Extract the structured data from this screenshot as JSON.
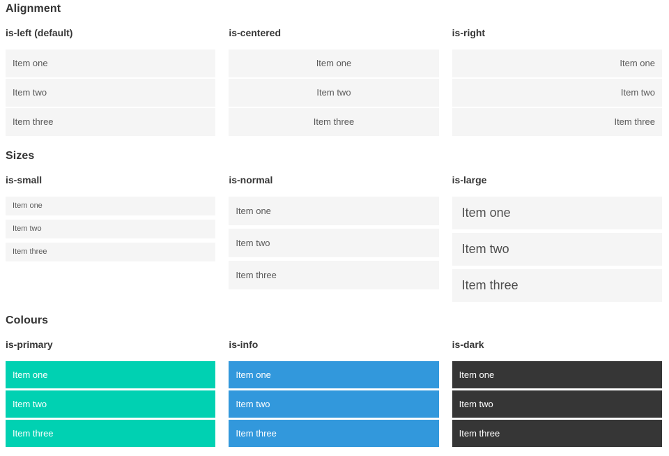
{
  "colors": {
    "primary": "#00d1b2",
    "info": "#3298dc",
    "dark": "#363636",
    "item_bg": "#f5f5f5",
    "item_text": "#595959",
    "heading_text": "#333333"
  },
  "sections": [
    {
      "title": "Alignment",
      "columns": [
        {
          "heading": "is-left (default)",
          "items": [
            "Item one",
            "Item two",
            "Item three"
          ]
        },
        {
          "heading": "is-centered",
          "items": [
            "Item one",
            "Item two",
            "Item three"
          ]
        },
        {
          "heading": "is-right",
          "items": [
            "Item one",
            "Item two",
            "Item three"
          ]
        }
      ]
    },
    {
      "title": "Sizes",
      "columns": [
        {
          "heading": "is-small",
          "items": [
            "Item one",
            "Item two",
            "Item three"
          ]
        },
        {
          "heading": "is-normal",
          "items": [
            "Item one",
            "Item two",
            "Item three"
          ]
        },
        {
          "heading": "is-large",
          "items": [
            "Item one",
            "Item two",
            "Item three"
          ]
        }
      ]
    },
    {
      "title": "Colours",
      "columns": [
        {
          "heading": "is-primary",
          "items": [
            "Item one",
            "Item two",
            "Item three"
          ]
        },
        {
          "heading": "is-info",
          "items": [
            "Item one",
            "Item two",
            "Item three"
          ]
        },
        {
          "heading": "is-dark",
          "items": [
            "Item one",
            "Item two",
            "Item three"
          ]
        }
      ]
    }
  ]
}
